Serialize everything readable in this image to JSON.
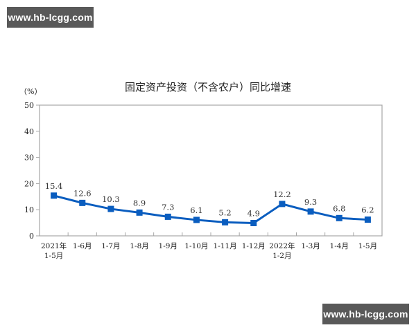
{
  "watermarks": {
    "top": "www.hb-lcgg.com",
    "bottom": "www.hb-lcgg.com"
  },
  "chart_data": {
    "type": "line",
    "title": "固定资产投资（不含农户）同比增速",
    "ylabel": "（%）",
    "xlabel": "",
    "ylim": [
      0,
      50
    ],
    "yticks": [
      0,
      10,
      20,
      30,
      40,
      50
    ],
    "grid": false,
    "legend": null,
    "categories": [
      [
        "2021年",
        "1-5月"
      ],
      [
        "1-6月"
      ],
      [
        "1-7月"
      ],
      [
        "1-8月"
      ],
      [
        "1-9月"
      ],
      [
        "1-10月"
      ],
      [
        "1-11月"
      ],
      [
        "1-12月"
      ],
      [
        "2022年",
        "1-2月"
      ],
      [
        "1-3月"
      ],
      [
        "1-4月"
      ],
      [
        "1-5月"
      ]
    ],
    "series": [
      {
        "name": "固定资产投资（不含农户）同比增速",
        "color": "#0a5dbf",
        "values": [
          15.4,
          12.6,
          10.3,
          8.9,
          7.3,
          6.1,
          5.2,
          4.9,
          12.2,
          9.3,
          6.8,
          6.2
        ],
        "labels": [
          "15.4",
          "12.6",
          "10.3",
          "8.9",
          "7.3",
          "6.1",
          "5.2",
          "4.9",
          "12.2",
          "9.3",
          "6.8",
          "6.2"
        ]
      }
    ]
  },
  "colors": {
    "line": "#0a5dbf",
    "axis": "#a6a6a6",
    "watermark_bg": "#595959"
  }
}
